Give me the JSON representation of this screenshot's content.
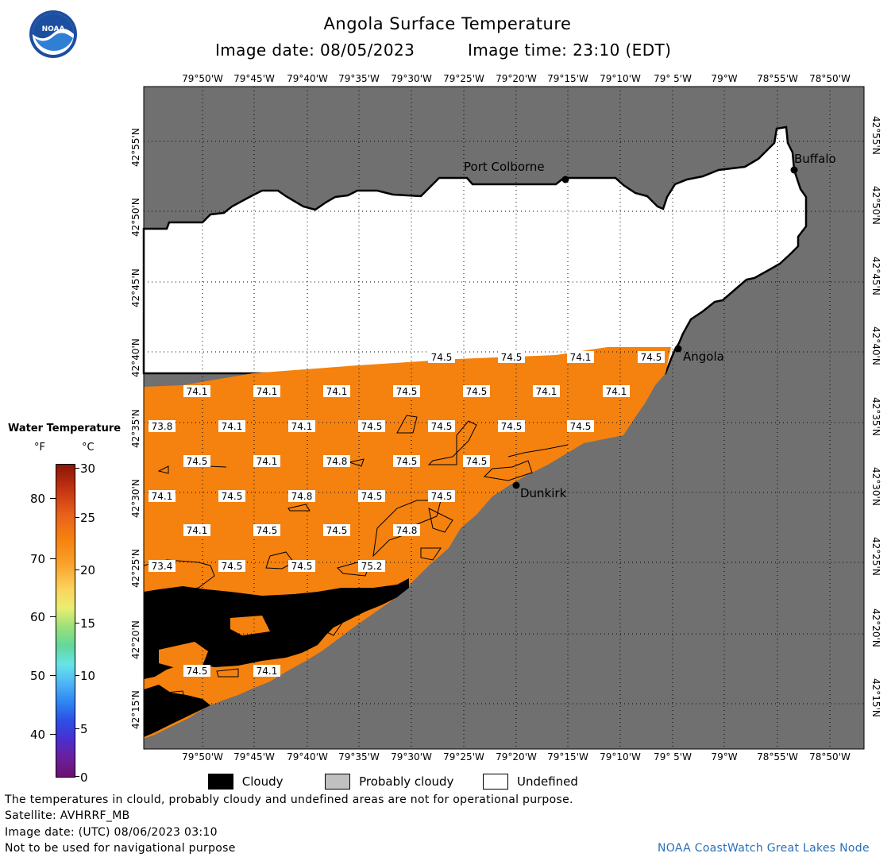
{
  "header": {
    "title": "Angola Surface Temperature",
    "date_label": "Image date: 08/05/2023",
    "time_label": "Image time: 23:10 (EDT)"
  },
  "logo": {
    "text": "NOAA"
  },
  "axes": {
    "lon_ticks": [
      "79°50'W",
      "79°45'W",
      "79°40'W",
      "79°35'W",
      "79°30'W",
      "79°25'W",
      "79°20'W",
      "79°15'W",
      "79°10'W",
      "79° 5'W",
      "79°W",
      "78°55'W",
      "78°50'W"
    ],
    "lat_ticks": [
      "42°55'N",
      "42°50'N",
      "42°45'N",
      "42°40'N",
      "42°35'N",
      "42°30'N",
      "42°25'N",
      "42°20'N",
      "42°15'N"
    ]
  },
  "cities": [
    {
      "name": "Port Colborne"
    },
    {
      "name": "Buffalo"
    },
    {
      "name": "Angola"
    },
    {
      "name": "Dunkirk"
    }
  ],
  "temperature_labels": [
    "74.5",
    "74.5",
    "74.1",
    "74.5",
    "74.1",
    "74.1",
    "74.1",
    "74.5",
    "74.5",
    "74.1",
    "74.1",
    "73.8",
    "74.1",
    "74.1",
    "74.5",
    "74.5",
    "74.5",
    "74.5",
    "74.5",
    "74.1",
    "74.8",
    "74.5",
    "74.5",
    "74.1",
    "74.5",
    "74.8",
    "74.5",
    "74.5",
    "74.1",
    "74.5",
    "74.5",
    "74.8",
    "73.4",
    "74.5",
    "74.5",
    "75.2",
    "74.5",
    "74.1"
  ],
  "colorbar": {
    "title": "Water Temperature",
    "unit_f": "°F",
    "unit_c": "°C",
    "f_ticks": [
      "80",
      "70",
      "60",
      "50",
      "40"
    ],
    "c_ticks": [
      "30",
      "25",
      "20",
      "15",
      "10",
      "5",
      "0"
    ]
  },
  "legend": {
    "cloudy": "Cloudy",
    "probably_cloudy": "Probably cloudy",
    "undefined": "Undefined",
    "colors": {
      "cloudy": "#000000",
      "probably_cloudy": "#c0c0c0",
      "undefined": "#ffffff",
      "land": "#707070",
      "water": "#f5820f"
    }
  },
  "footer": {
    "disclaimer": "The temperatures in clould, probably cloudy and undefined areas are not for operational purpose.",
    "satellite": "Satellite: AVHRRF_MB",
    "utc_date": "Image date: (UTC) 08/06/2023  03:10",
    "navigation": "Not to be used for navigational purpose",
    "credit": "NOAA CoastWatch Great Lakes Node"
  }
}
